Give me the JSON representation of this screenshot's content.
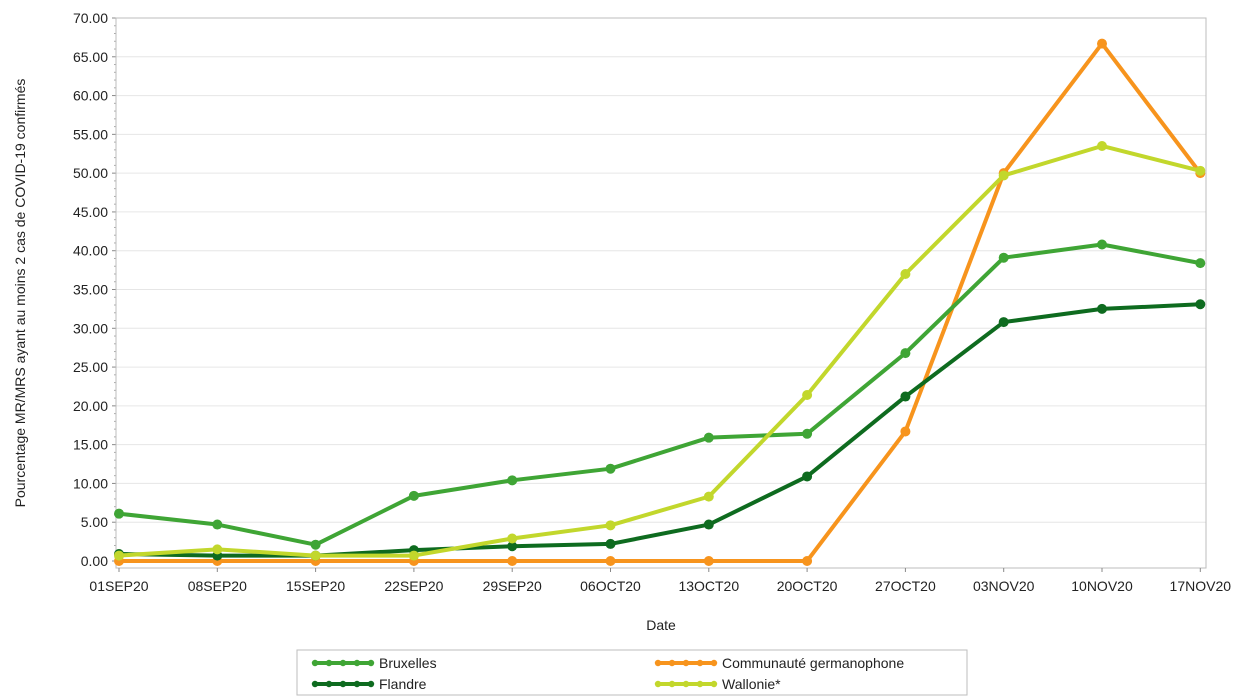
{
  "chart_data": {
    "type": "line",
    "title": "",
    "xlabel": "Date",
    "ylabel": "Pourcentage MR/MRS ayant au moins 2 cas de COVID-19 confirmés",
    "x": [
      "01SEP20",
      "08SEP20",
      "15SEP20",
      "22SEP20",
      "29SEP20",
      "06OCT20",
      "13OCT20",
      "20OCT20",
      "27OCT20",
      "03NOV20",
      "10NOV20",
      "17NOV20"
    ],
    "ylim": [
      0,
      70
    ],
    "yticks": [
      "0.00",
      "5.00",
      "10.00",
      "15.00",
      "20.00",
      "25.00",
      "30.00",
      "35.00",
      "40.00",
      "45.00",
      "50.00",
      "55.00",
      "60.00",
      "65.00",
      "70.00"
    ],
    "grid": true,
    "legend_position": "bottom",
    "series": [
      {
        "name": "Bruxelles",
        "color": "#3fa535",
        "values": [
          6.1,
          4.7,
          2.1,
          8.4,
          10.4,
          11.9,
          15.9,
          16.4,
          26.8,
          39.1,
          40.8,
          38.4
        ]
      },
      {
        "name": "Communauté germanophone",
        "color": "#f7941d",
        "values": [
          0,
          0,
          0,
          0,
          0,
          0,
          0,
          0,
          16.7,
          50.0,
          66.7,
          50.0
        ]
      },
      {
        "name": "Flandre",
        "color": "#0e6b1f",
        "values": [
          0.9,
          0.7,
          0.7,
          1.4,
          1.9,
          2.2,
          4.7,
          10.9,
          21.2,
          30.8,
          32.5,
          33.1
        ]
      },
      {
        "name": "Wallonie*",
        "color": "#c2d72c",
        "values": [
          0.7,
          1.5,
          0.7,
          0.7,
          2.9,
          4.6,
          8.3,
          21.4,
          37.0,
          49.7,
          53.5,
          50.3
        ]
      }
    ]
  }
}
